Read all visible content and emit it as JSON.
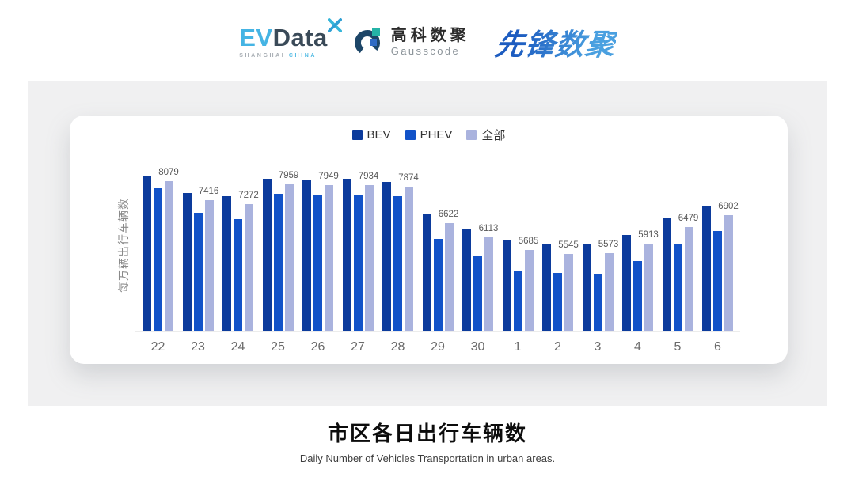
{
  "header": {
    "evdata": {
      "text_ev": "EV",
      "text_data": "Data",
      "sub_left": "SHANGHAI",
      "sub_right": "CHINA"
    },
    "gausscode": {
      "cn": "高科数聚",
      "en": "Gausscode"
    },
    "pioneer": {
      "text": "先锋数聚"
    }
  },
  "colors": {
    "bev": "#0c3b9c",
    "phev": "#1252c8",
    "all": "#aab3de",
    "panel_bg": "#f0f0f1",
    "evdata_blue": "#45b4e4",
    "gausscode_dark": "#1d4668",
    "gausscode_teal": "#25b3a7",
    "gausscode_blue": "#2f6bc4",
    "pioneer_blue": "#2b7ad2"
  },
  "chart_data": {
    "type": "bar",
    "title": "市区各日出行车辆数",
    "subtitle": "Daily Number of Vehicles Transportation in urban areas.",
    "ylabel": "每万辆出行车辆数",
    "xlabel": "",
    "categories": [
      "22",
      "23",
      "24",
      "25",
      "26",
      "27",
      "28",
      "29",
      "30",
      "1",
      "2",
      "3",
      "4",
      "5",
      "6"
    ],
    "series": [
      {
        "name": "BEV",
        "key": "bev",
        "color": "#0c3b9c",
        "values": [
          8243,
          7665,
          7555,
          8160,
          8133,
          8160,
          8050,
          6923,
          6428,
          6043,
          5878,
          5905,
          6208,
          6785,
          7198
        ]
      },
      {
        "name": "PHEV",
        "key": "phev",
        "color": "#1252c8",
        "values": [
          7830,
          6978,
          6758,
          7638,
          7610,
          7610,
          7555,
          6070,
          5465,
          4970,
          4888,
          4860,
          5300,
          5878,
          6345
        ]
      },
      {
        "name": "全部",
        "key": "all",
        "color": "#aab3de",
        "values": [
          8079,
          7416,
          7272,
          7959,
          7949,
          7934,
          7874,
          6622,
          6113,
          5685,
          5545,
          5573,
          5913,
          6479,
          6902
        ]
      }
    ],
    "data_labels": [
      8079,
      7416,
      7272,
      7959,
      7949,
      7934,
      7874,
      6622,
      6113,
      5685,
      5545,
      5573,
      5913,
      6479,
      6902
    ],
    "data_labels_series": "全部",
    "ylim": [
      2880,
      9200
    ],
    "grid": false,
    "legend_position": "top-center"
  },
  "footer": {
    "title": "市区各日出行车辆数",
    "subtitle": "Daily Number of Vehicles Transportation in urban areas."
  }
}
